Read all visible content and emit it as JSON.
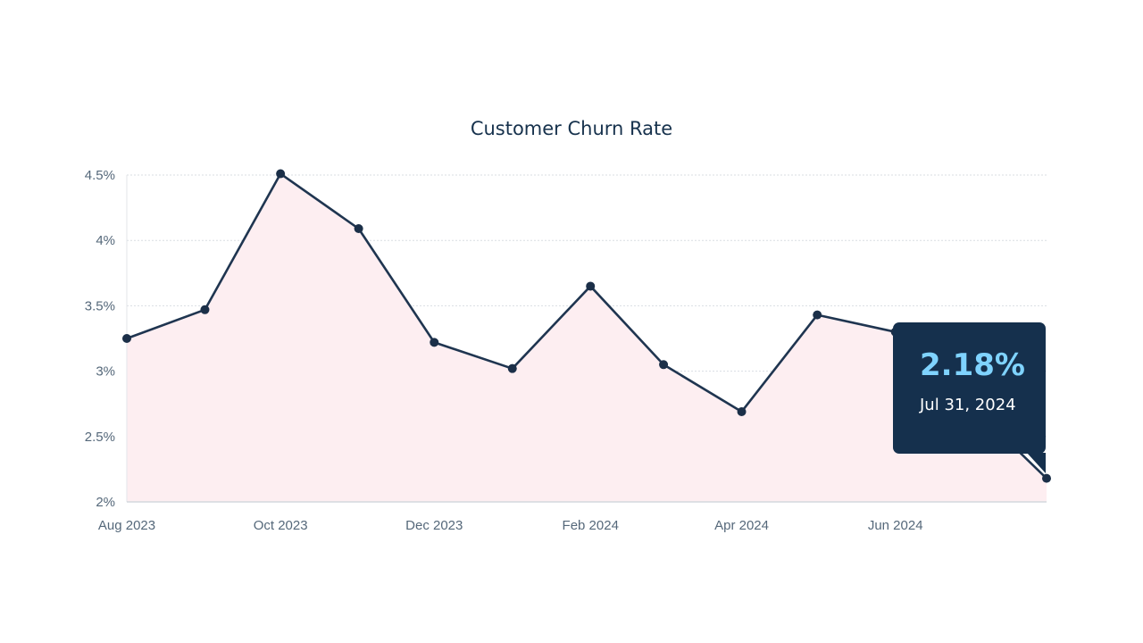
{
  "chart_data": {
    "type": "area",
    "title": "Customer Churn Rate",
    "xlabel": "",
    "ylabel": "",
    "x": [
      "2023-08-01",
      "2023-09-01",
      "2023-10-01",
      "2023-11-01",
      "2023-12-01",
      "2024-01-01",
      "2024-02-01",
      "2024-03-01",
      "2024-04-01",
      "2024-05-01",
      "2024-06-01",
      "2024-07-31"
    ],
    "series": [
      {
        "values": [
          3.25,
          3.47,
          4.51,
          4.09,
          3.22,
          3.02,
          3.65,
          3.05,
          2.69,
          3.43,
          3.3,
          2.18
        ]
      }
    ],
    "x_ticks": [
      "Aug 2023",
      "Oct 2023",
      "Dec 2023",
      "Feb 2024",
      "Apr 2024",
      "Jun 2024"
    ],
    "y_ticks": [
      "2%",
      "2.5%",
      "3%",
      "3.5%",
      "4%",
      "4.5%"
    ],
    "ylim": [
      2,
      4.5
    ],
    "grid": true,
    "colors": {
      "line": "#1f3550",
      "fill": "#fdeef1",
      "point": "#1b2f48",
      "grid": "#d9dde2"
    },
    "tooltip": {
      "value": "2.18%",
      "date": "Jul 31, 2024"
    }
  }
}
